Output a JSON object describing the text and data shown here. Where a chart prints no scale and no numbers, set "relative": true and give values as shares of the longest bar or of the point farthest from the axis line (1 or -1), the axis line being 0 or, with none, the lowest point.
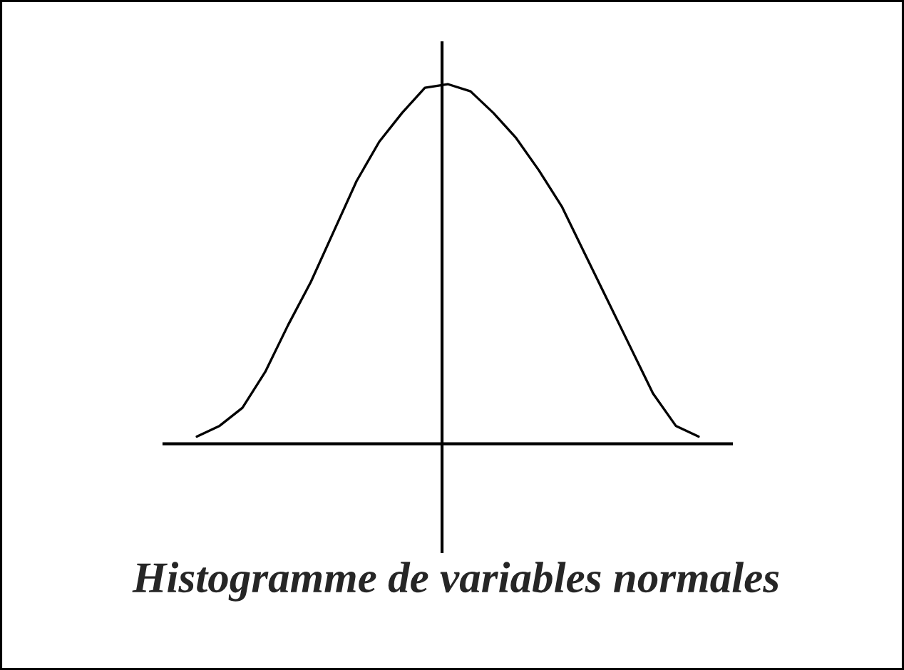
{
  "chart_data": {
    "type": "line",
    "title": "Histogramme de variables normales",
    "categories": [
      null,
      null,
      null,
      null,
      null,
      null,
      null,
      null,
      null,
      null,
      null,
      null,
      null,
      null,
      null,
      null,
      null,
      null,
      null,
      null,
      null,
      null,
      null
    ],
    "values": [
      0.02,
      0.05,
      0.1,
      0.2,
      0.33,
      0.45,
      0.59,
      0.73,
      0.84,
      0.92,
      0.99,
      1.0,
      0.98,
      0.92,
      0.85,
      0.76,
      0.66,
      0.53,
      0.4,
      0.27,
      0.14,
      0.05,
      0.02
    ],
    "color": "#000000",
    "relative": true
  }
}
